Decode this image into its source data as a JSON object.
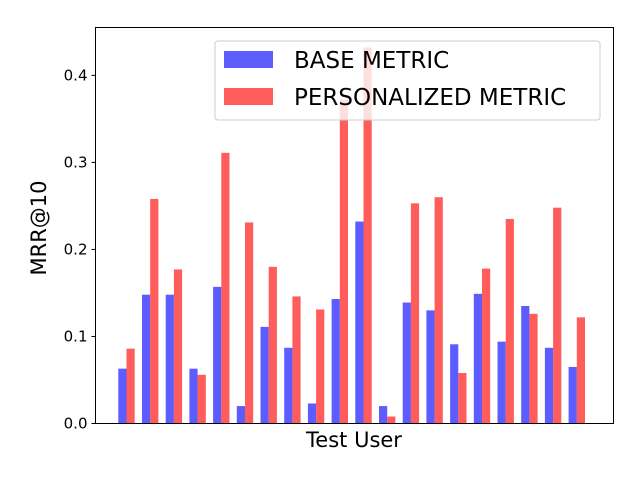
{
  "chart_data": {
    "type": "bar",
    "title": "",
    "xlabel": "Test User",
    "ylabel": "MRR@10",
    "ylim": [
      0,
      0.455
    ],
    "yticks": [
      "0.0",
      "0.1",
      "0.2",
      "0.3",
      "0.4"
    ],
    "ytick_values": [
      0.0,
      0.1,
      0.2,
      0.3,
      0.4
    ],
    "legend_position": "top-right",
    "series": [
      {
        "name": "BASE METRIC",
        "color": "#3333ff",
        "values": [
          0.063,
          0.148,
          0.148,
          0.063,
          0.157,
          0.02,
          0.111,
          0.087,
          0.023,
          0.143,
          0.232,
          0.02,
          0.139,
          0.13,
          0.091,
          0.149,
          0.094,
          0.135,
          0.087,
          0.065
        ]
      },
      {
        "name": "PERSONALIZED METRIC",
        "color": "#ff3333",
        "values": [
          0.086,
          0.258,
          0.177,
          0.056,
          0.311,
          0.231,
          0.18,
          0.146,
          0.131,
          0.372,
          0.432,
          0.008,
          0.253,
          0.26,
          0.058,
          0.178,
          0.235,
          0.126,
          0.248,
          0.122
        ]
      }
    ]
  }
}
